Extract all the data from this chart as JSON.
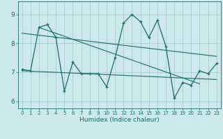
{
  "xlabel": "Humidex (Indice chaleur)",
  "bg_color": "#cce8ec",
  "line_color": "#1a6b6b",
  "grid_color": "#aacdd4",
  "xlim": [
    -0.5,
    23.5
  ],
  "ylim": [
    5.75,
    9.45
  ],
  "yticks": [
    6,
    7,
    8,
    9
  ],
  "xticks": [
    0,
    1,
    2,
    3,
    4,
    5,
    6,
    7,
    8,
    9,
    10,
    11,
    12,
    13,
    14,
    15,
    16,
    17,
    18,
    19,
    20,
    21,
    22,
    23
  ],
  "series1_x": [
    0,
    1,
    2,
    3,
    4,
    5,
    6,
    7,
    8,
    9,
    10,
    11,
    12,
    13,
    14,
    15,
    16,
    17,
    18,
    19,
    20,
    21,
    22,
    23
  ],
  "series1_y": [
    7.1,
    7.05,
    8.55,
    8.65,
    8.2,
    6.35,
    7.35,
    6.95,
    6.95,
    6.95,
    6.5,
    7.5,
    8.7,
    9.0,
    8.75,
    8.2,
    8.8,
    7.9,
    6.1,
    6.65,
    6.55,
    7.05,
    6.95,
    7.3
  ],
  "trend1_x": [
    0,
    23
  ],
  "trend1_y": [
    8.35,
    7.55
  ],
  "trend2_x": [
    0,
    23
  ],
  "trend2_y": [
    7.05,
    6.75
  ],
  "trend3_x": [
    2,
    21
  ],
  "trend3_y": [
    8.55,
    6.6
  ]
}
